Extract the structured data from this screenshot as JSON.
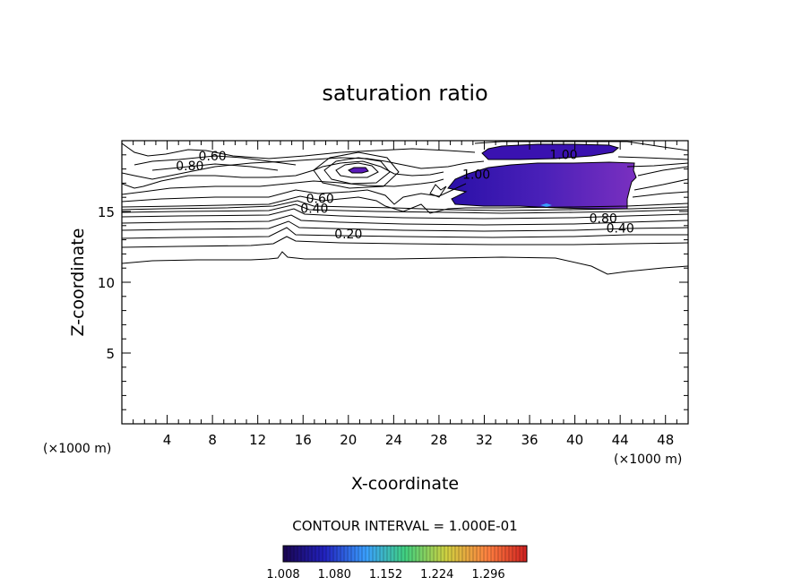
{
  "chart_data": {
    "type": "contour",
    "title": "saturation ratio",
    "xlabel": "X-coordinate",
    "ylabel": "Z-coordinate",
    "x_unit": "(×1000 m)",
    "y_unit": "(×1000 m)",
    "xlim": [
      0,
      50
    ],
    "ylim": [
      0,
      20
    ],
    "x_ticks": [
      4,
      8,
      12,
      16,
      20,
      24,
      28,
      32,
      36,
      40,
      44,
      48
    ],
    "y_ticks": [
      5,
      10,
      15
    ],
    "contour_interval_text": "CONTOUR INTERVAL = 1.000E-01",
    "contour_labels": [
      {
        "text": "0.60",
        "x": 8,
        "y": 18.6
      },
      {
        "text": "0.80",
        "x": 6,
        "y": 17.9
      },
      {
        "text": "1.00",
        "x": 39,
        "y": 18.7
      },
      {
        "text": "1.00",
        "x": 31.3,
        "y": 17.3
      },
      {
        "text": "0.60",
        "x": 17.5,
        "y": 15.6
      },
      {
        "text": "0.40",
        "x": 17,
        "y": 14.9
      },
      {
        "text": "0.20",
        "x": 20,
        "y": 13.1
      },
      {
        "text": "0.80",
        "x": 42.5,
        "y": 14.2
      },
      {
        "text": "0.40",
        "x": 44,
        "y": 13.5
      }
    ],
    "colorbar": {
      "ticks": [
        "1.008",
        "1.080",
        "1.152",
        "1.224",
        "1.296"
      ],
      "min": 1.008,
      "max": 1.35,
      "colors": [
        "#1a0550",
        "#2222c0",
        "#3aa0ff",
        "#40d080",
        "#d0d040",
        "#ff8040",
        "#d02020"
      ]
    },
    "grid": false
  }
}
